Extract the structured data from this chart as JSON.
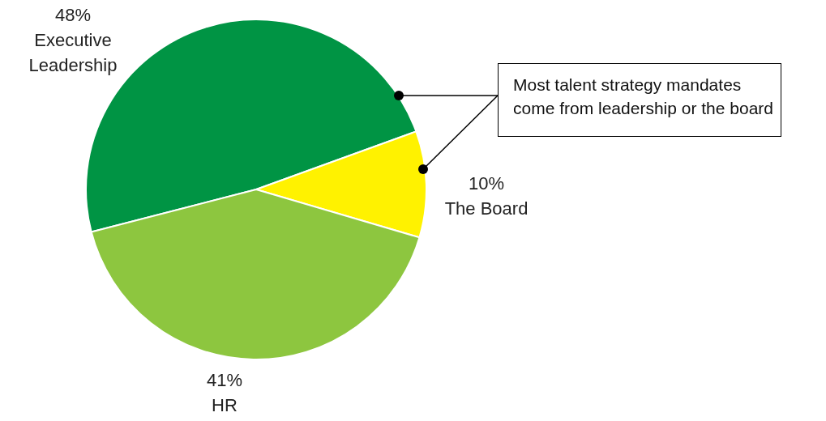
{
  "chart_data": {
    "type": "pie",
    "categories": [
      "Executive Leadership",
      "The Board",
      "HR"
    ],
    "values": [
      48,
      10,
      41
    ],
    "colors": [
      "#009444",
      "#fff200",
      "#8dc63f"
    ],
    "value_labels": [
      "48%",
      "10%",
      "41%"
    ],
    "legend": false,
    "annotations": [
      "Most talent strategy mandates come from leadership or the board"
    ]
  }
}
